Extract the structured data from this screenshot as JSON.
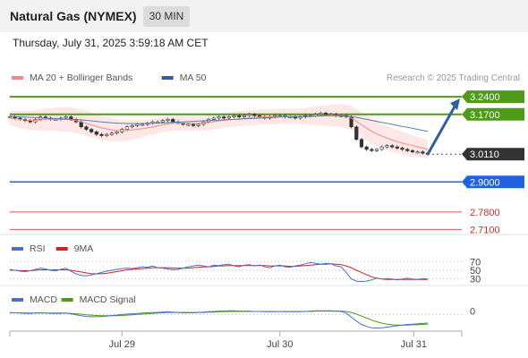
{
  "header": {
    "title": "Natural Gas (NYMEX)",
    "interval": "30 MIN",
    "datetime": "Thursday, July 31, 2025 3:59:18 AM CET"
  },
  "chart_data": [
    {
      "type": "line",
      "panel": "price",
      "legend": [
        {
          "name": "MA 20 + Bollinger Bands",
          "color": "#f08a8a"
        },
        {
          "name": "MA 50",
          "color": "#2f5f9e"
        }
      ],
      "credit": "Research © 2025 Trading Central",
      "x_ticks": [
        "Jul 29",
        "Jul 30",
        "Jul 31"
      ],
      "levels": [
        {
          "value": "3.2400",
          "kind": "resistance",
          "color": "#4e9a1a"
        },
        {
          "value": "3.1700",
          "kind": "resistance",
          "color": "#4e9a1a"
        },
        {
          "value": "3.0110",
          "kind": "last",
          "color": "#333333"
        },
        {
          "value": "2.9000",
          "kind": "pivot",
          "color": "#1f63e0"
        },
        {
          "value": "2.7800",
          "kind": "support",
          "color": "#e05050"
        },
        {
          "value": "2.7100",
          "kind": "support",
          "color": "#e05050"
        }
      ],
      "ylim": [
        2.69,
        3.28
      ],
      "price_series": [
        3.16,
        3.155,
        3.15,
        3.145,
        3.14,
        3.15,
        3.16,
        3.155,
        3.15,
        3.15,
        3.155,
        3.16,
        3.15,
        3.14,
        3.12,
        3.11,
        3.1,
        3.09,
        3.085,
        3.09,
        3.095,
        3.1,
        3.11,
        3.12,
        3.125,
        3.13,
        3.13,
        3.135,
        3.14,
        3.14,
        3.145,
        3.15,
        3.14,
        3.135,
        3.13,
        3.13,
        3.125,
        3.13,
        3.14,
        3.15,
        3.155,
        3.16,
        3.155,
        3.16,
        3.165,
        3.16,
        3.165,
        3.17,
        3.165,
        3.16,
        3.155,
        3.16,
        3.165,
        3.165,
        3.16,
        3.16,
        3.155,
        3.16,
        3.165,
        3.165,
        3.17,
        3.175,
        3.17,
        3.17,
        3.165,
        3.165,
        3.16,
        3.12,
        3.07,
        3.04,
        3.03,
        3.025,
        3.03,
        3.04,
        3.045,
        3.04,
        3.035,
        3.03,
        3.025,
        3.02,
        3.02,
        3.015,
        3.011
      ],
      "ma20": [
        3.155,
        3.152,
        3.15,
        3.148,
        3.146,
        3.146,
        3.148,
        3.15,
        3.15,
        3.15,
        3.15,
        3.15,
        3.148,
        3.145,
        3.14,
        3.134,
        3.128,
        3.122,
        3.116,
        3.112,
        3.108,
        3.106,
        3.105,
        3.106,
        3.108,
        3.11,
        3.113,
        3.116,
        3.12,
        3.124,
        3.128,
        3.132,
        3.134,
        3.135,
        3.135,
        3.135,
        3.134,
        3.134,
        3.135,
        3.138,
        3.141,
        3.144,
        3.146,
        3.148,
        3.15,
        3.152,
        3.154,
        3.156,
        3.158,
        3.159,
        3.16,
        3.16,
        3.161,
        3.162,
        3.162,
        3.162,
        3.162,
        3.162,
        3.162,
        3.163,
        3.164,
        3.165,
        3.165,
        3.166,
        3.166,
        3.165,
        3.163,
        3.155,
        3.142,
        3.128,
        3.115,
        3.102,
        3.092,
        3.083,
        3.075,
        3.068,
        3.061,
        3.055,
        3.05,
        3.045,
        3.04,
        3.035,
        3.03
      ],
      "ma50": [
        3.162,
        3.161,
        3.16,
        3.159,
        3.158,
        3.157,
        3.156,
        3.155,
        3.154,
        3.153,
        3.152,
        3.151,
        3.15,
        3.149,
        3.148,
        3.146,
        3.144,
        3.142,
        3.14,
        3.138,
        3.136,
        3.135,
        3.134,
        3.133,
        3.133,
        3.133,
        3.133,
        3.134,
        3.134,
        3.135,
        3.136,
        3.137,
        3.138,
        3.139,
        3.14,
        3.141,
        3.142,
        3.143,
        3.144,
        3.145,
        3.146,
        3.147,
        3.148,
        3.149,
        3.15,
        3.151,
        3.152,
        3.153,
        3.154,
        3.155,
        3.156,
        3.157,
        3.158,
        3.159,
        3.16,
        3.16,
        3.161,
        3.161,
        3.162,
        3.162,
        3.163,
        3.163,
        3.164,
        3.164,
        3.164,
        3.164,
        3.163,
        3.161,
        3.158,
        3.154,
        3.15,
        3.146,
        3.142,
        3.138,
        3.134,
        3.13,
        3.126,
        3.122,
        3.118,
        3.114,
        3.11,
        3.106,
        3.102
      ]
    },
    {
      "type": "line",
      "panel": "rsi",
      "legend": [
        {
          "name": "RSI",
          "color": "#4a6fd0"
        },
        {
          "name": "9MA",
          "color": "#d42020"
        }
      ],
      "levels": [
        "70",
        "50",
        "30"
      ],
      "ylim": [
        15,
        85
      ],
      "rsi": [
        52,
        50,
        48,
        47,
        49,
        52,
        55,
        53,
        50,
        49,
        52,
        55,
        48,
        42,
        38,
        37,
        39,
        42,
        45,
        48,
        50,
        52,
        54,
        55,
        54,
        56,
        58,
        57,
        60,
        56,
        55,
        53,
        51,
        52,
        55,
        58,
        60,
        62,
        60,
        58,
        62,
        61,
        63,
        64,
        60,
        58,
        62,
        63,
        60,
        62,
        58,
        56,
        60,
        62,
        58,
        57,
        60,
        62,
        65,
        68,
        66,
        64,
        66,
        65,
        60,
        58,
        45,
        30,
        25,
        24,
        25,
        28,
        32,
        30,
        31,
        30,
        28,
        30,
        32,
        30,
        29,
        31,
        30
      ],
      "ma9": [
        50,
        50,
        49,
        49,
        49,
        50,
        51,
        51,
        51,
        51,
        51,
        51,
        50,
        48,
        46,
        44,
        42,
        42,
        42,
        43,
        45,
        47,
        49,
        51,
        52,
        53,
        54,
        55,
        56,
        56,
        56,
        56,
        55,
        55,
        55,
        55,
        56,
        57,
        58,
        58,
        59,
        60,
        60,
        61,
        61,
        61,
        61,
        61,
        61,
        61,
        61,
        60,
        60,
        60,
        60,
        59,
        59,
        60,
        61,
        62,
        63,
        64,
        64,
        65,
        64,
        63,
        60,
        56,
        50,
        45,
        40,
        35,
        32,
        30,
        29,
        29,
        29,
        29,
        29,
        29,
        29,
        29,
        29
      ]
    },
    {
      "type": "line",
      "panel": "macd",
      "legend": [
        {
          "name": "MACD",
          "color": "#4a6fd0"
        },
        {
          "name": "MACD Signal",
          "color": "#4e9a1a"
        }
      ],
      "levels": [
        "0"
      ],
      "ylim": [
        -0.05,
        0.025
      ],
      "macd": [
        0.006,
        0.005,
        0.004,
        0.003,
        0.003,
        0.004,
        0.005,
        0.004,
        0.003,
        0.003,
        0.003,
        0.004,
        0.002,
        -0.001,
        -0.004,
        -0.006,
        -0.007,
        -0.007,
        -0.006,
        -0.005,
        -0.003,
        -0.002,
        0,
        0.001,
        0.002,
        0.003,
        0.004,
        0.005,
        0.006,
        0.006,
        0.007,
        0.008,
        0.007,
        0.006,
        0.005,
        0.005,
        0.005,
        0.006,
        0.007,
        0.008,
        0.009,
        0.01,
        0.01,
        0.011,
        0.011,
        0.01,
        0.01,
        0.01,
        0.009,
        0.009,
        0.008,
        0.008,
        0.008,
        0.009,
        0.008,
        0.008,
        0.008,
        0.008,
        0.009,
        0.01,
        0.011,
        0.011,
        0.011,
        0.011,
        0.01,
        0.009,
        0.004,
        -0.008,
        -0.02,
        -0.03,
        -0.036,
        -0.04,
        -0.041,
        -0.04,
        -0.038,
        -0.036,
        -0.034,
        -0.032,
        -0.03,
        -0.029,
        -0.028,
        -0.027,
        -0.026
      ],
      "signal": [
        0.005,
        0.005,
        0.005,
        0.004,
        0.004,
        0.004,
        0.004,
        0.004,
        0.004,
        0.004,
        0.004,
        0.004,
        0.003,
        0.002,
        0.001,
        -0.001,
        -0.002,
        -0.003,
        -0.004,
        -0.004,
        -0.004,
        -0.004,
        -0.003,
        -0.002,
        -0.001,
        0,
        0.001,
        0.002,
        0.003,
        0.004,
        0.005,
        0.006,
        0.006,
        0.006,
        0.006,
        0.006,
        0.006,
        0.006,
        0.006,
        0.007,
        0.007,
        0.008,
        0.008,
        0.009,
        0.009,
        0.009,
        0.009,
        0.009,
        0.009,
        0.009,
        0.009,
        0.009,
        0.009,
        0.009,
        0.009,
        0.009,
        0.009,
        0.009,
        0.009,
        0.009,
        0.01,
        0.01,
        0.01,
        0.01,
        0.01,
        0.01,
        0.009,
        0.006,
        0.001,
        -0.005,
        -0.011,
        -0.017,
        -0.022,
        -0.026,
        -0.029,
        -0.031,
        -0.032,
        -0.032,
        -0.032,
        -0.031,
        -0.031,
        -0.03,
        -0.029
      ]
    }
  ]
}
